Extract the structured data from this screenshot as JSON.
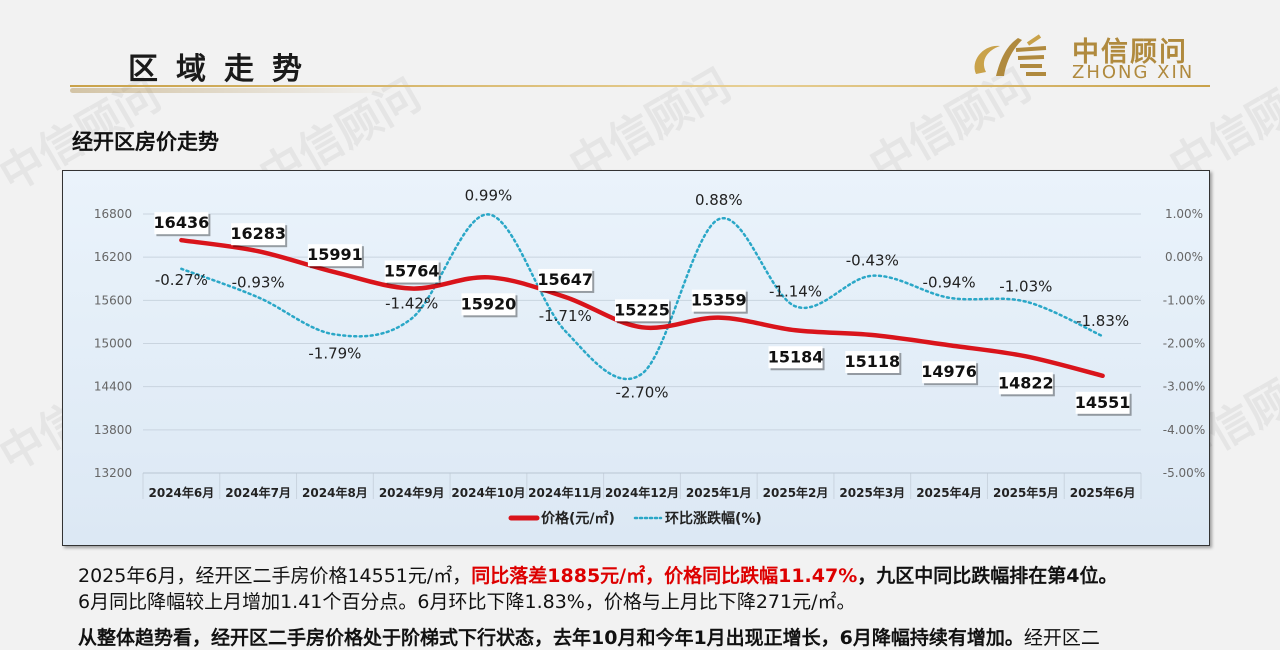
{
  "header": {
    "section_title": "区域走势",
    "logo_cn": "中信顾问",
    "logo_en": "ZHONG XIN",
    "watermark": "中信顾问"
  },
  "chart_heading": "经开区房价走势",
  "chart_data": {
    "type": "line",
    "categories": [
      "2024年6月",
      "2024年7月",
      "2024年8月",
      "2024年9月",
      "2024年10月",
      "2024年11月",
      "2024年12月",
      "2025年1月",
      "2025年2月",
      "2025年3月",
      "2025年4月",
      "2025年5月",
      "2025年6月"
    ],
    "series": [
      {
        "name": "价格(元/㎡)",
        "axis": "left",
        "color": "#d9141b",
        "style": "solid",
        "values": [
          16436,
          16283,
          15991,
          15764,
          15920,
          15647,
          15225,
          15359,
          15184,
          15118,
          14976,
          14822,
          14551
        ]
      },
      {
        "name": "环比涨跌幅(%)",
        "axis": "right",
        "color": "#2aa7c7",
        "style": "dotted",
        "values": [
          -0.27,
          -0.93,
          -1.79,
          -1.42,
          0.99,
          -1.71,
          -2.7,
          0.88,
          -1.14,
          -0.43,
          -0.94,
          -1.03,
          -1.83
        ],
        "labels": [
          "-0.27%",
          "-0.93%",
          "-1.79%",
          "-1.42%",
          "0.99%",
          "-1.71%",
          "-2.70%",
          "0.88%",
          "-1.14%",
          "-0.43%",
          "-0.94%",
          "-1.03%",
          "-1.83%"
        ]
      }
    ],
    "y_left": {
      "min": 13200,
      "max": 16800,
      "ticks": [
        13200,
        13800,
        14400,
        15000,
        15600,
        16200,
        16800
      ]
    },
    "y_right": {
      "min": -5,
      "max": 1,
      "ticks": [
        1,
        0,
        -1,
        -2,
        -3,
        -4,
        -5
      ],
      "tick_labels": [
        "1.00%",
        "0.00%",
        "-1.00%",
        "-2.00%",
        "-3.00%",
        "-4.00%",
        "-5.00%"
      ]
    },
    "price_label_position": [
      "above",
      "above",
      "above",
      "above",
      "below",
      "above",
      "above",
      "above",
      "below",
      "below",
      "below",
      "below",
      "below"
    ],
    "legend_position": "bottom",
    "grid": true
  },
  "paragraph1": {
    "line1_a": "2025年6月，经开区二手房价格14551元/㎡，",
    "line1_red": "同比落差1885元/㎡，价格同比跌幅11.47%",
    "line1_b": "，九区中同比跌幅排在第4位。",
    "line2": "6月同比降幅较上月增加1.41个百分点。6月环比下降1.83%，价格与上月比下降271元/㎡。"
  },
  "paragraph2": {
    "bold": "从整体趋势看，经开区二手房价格处于阶梯式下行状态，去年10月和今年1月出现正增长，6月降幅持续有增加。",
    "rest": "经开区二"
  },
  "colors": {
    "accent_gold": "#c9a24a",
    "price_red": "#d9141b",
    "pct_teal": "#2aa7c7"
  }
}
